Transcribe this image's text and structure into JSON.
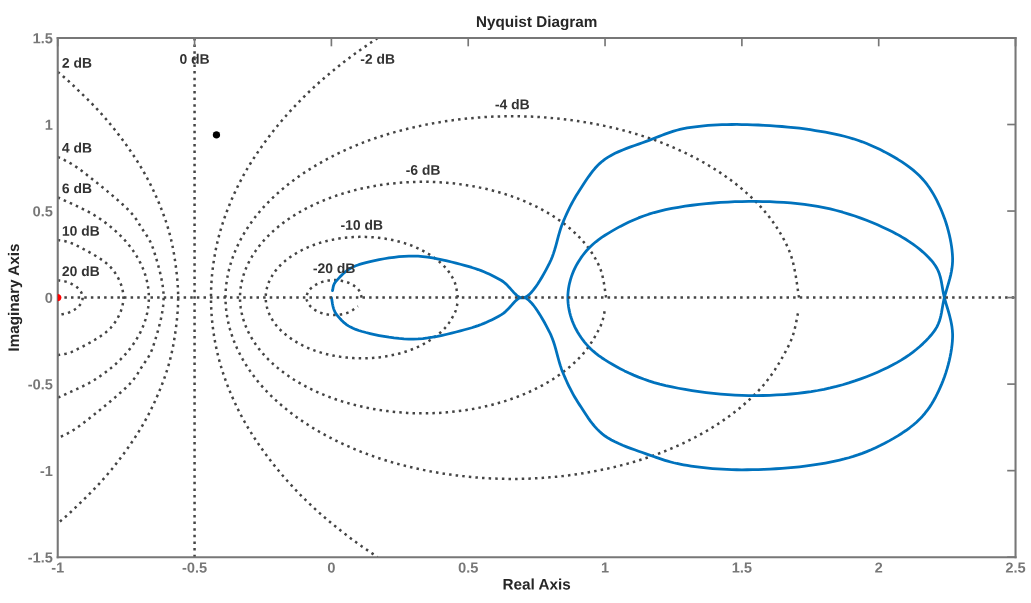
{
  "chart_data": {
    "type": "line",
    "title": "Nyquist Diagram",
    "xlabel": "Real Axis",
    "ylabel": "Imaginary Axis",
    "xlim": [
      -1,
      2.5
    ],
    "ylim": [
      -1.5,
      1.5
    ],
    "xticks": [
      -1,
      -0.5,
      0,
      0.5,
      1,
      1.5,
      2,
      2.5
    ],
    "yticks": [
      -1.5,
      -1,
      -0.5,
      0,
      0.5,
      1,
      1.5
    ],
    "grid": false,
    "legend": false,
    "ref_lines": [
      {
        "axis": "y",
        "value": 0,
        "color": "#444444",
        "line_style": "dotted"
      }
    ],
    "series": [
      {
        "type": "line",
        "name": "-4 dB",
        "line_style": "dotted",
        "color": "#444444",
        "x": [
          1.709,
          1.673,
          1.569,
          1.402,
          1.185,
          0.932,
          0.661,
          0.39,
          0.137,
          -0.08,
          -0.247,
          -0.351,
          -0.387,
          -0.351,
          -0.247,
          -0.08,
          0.137,
          0.39,
          0.661,
          0.932,
          1.185,
          1.402,
          1.569,
          1.673,
          1.705
        ],
        "values": [
          0,
          0.271,
          0.524,
          0.741,
          0.908,
          1.012,
          1.048,
          1.012,
          0.908,
          0.741,
          0.524,
          0.271,
          0,
          -0.271,
          -0.524,
          -0.741,
          -0.908,
          -1.012,
          -1.048,
          -1.012,
          -0.908,
          -0.741,
          -0.524,
          -0.271,
          -0.091
        ]
      },
      {
        "type": "line",
        "name": "-6 dB",
        "line_style": "dotted",
        "color": "#444444",
        "x": [
          1.004,
          0.981,
          0.914,
          0.808,
          0.67,
          0.508,
          0.335,
          0.162,
          0,
          -0.138,
          -0.244,
          -0.311,
          -0.334,
          -0.311,
          -0.244,
          -0.138,
          0,
          0.162,
          0.335,
          0.508,
          0.67,
          0.808,
          0.914,
          0.981,
          1.001
        ],
        "values": [
          0,
          0.173,
          0.335,
          0.473,
          0.579,
          0.646,
          0.669,
          0.646,
          0.579,
          0.473,
          0.335,
          0.173,
          0,
          -0.173,
          -0.335,
          -0.473,
          -0.579,
          -0.646,
          -0.669,
          -0.646,
          -0.579,
          -0.473,
          -0.335,
          -0.173,
          -0.058
        ]
      },
      {
        "type": "line",
        "name": "-10 dB",
        "line_style": "dotted",
        "color": "#444444",
        "x": [
          0.462,
          0.45,
          0.415,
          0.359,
          0.287,
          0.202,
          0.111,
          0.02,
          -0.065,
          -0.137,
          -0.193,
          -0.228,
          -0.24,
          -0.228,
          -0.193,
          -0.137,
          -0.065,
          0.02,
          0.111,
          0.202,
          0.287,
          0.359,
          0.415,
          0.45,
          0.461
        ],
        "values": [
          0,
          0.091,
          0.176,
          0.248,
          0.304,
          0.339,
          0.351,
          0.339,
          0.304,
          0.248,
          0.176,
          0.091,
          0,
          -0.091,
          -0.176,
          -0.248,
          -0.304,
          -0.339,
          -0.351,
          -0.339,
          -0.304,
          -0.248,
          -0.176,
          -0.091,
          -0.031
        ]
      },
      {
        "type": "line",
        "name": "-20 dB",
        "line_style": "dotted",
        "color": "#444444",
        "x": [
          0.111,
          0.097,
          0.06,
          0.01,
          -0.04,
          -0.077,
          -0.091,
          -0.077,
          -0.04,
          0.01,
          0.06,
          0.097
        ],
        "values": [
          0,
          0.05,
          0.087,
          0.101,
          0.087,
          0.05,
          0,
          -0.05,
          -0.087,
          -0.101,
          -0.087,
          -0.05
        ]
      },
      {
        "type": "line",
        "name": "20 dB",
        "line_style": "dotted",
        "color": "#444444",
        "x": [
          -1,
          -0.96,
          -0.923,
          -0.909,
          -0.923,
          -0.96,
          -1
        ],
        "values": [
          0.1,
          0.087,
          0.05,
          0,
          -0.05,
          -0.087,
          -0.1
        ]
      },
      {
        "type": "line",
        "name": "10 dB",
        "line_style": "dotted",
        "color": "#444444",
        "x": [
          -1,
          -0.935,
          -0.807,
          -0.76,
          -0.807,
          -0.935,
          -1
        ],
        "values": [
          0.333,
          0.304,
          0.176,
          0,
          -0.176,
          -0.304,
          -0.333
        ]
      },
      {
        "type": "line",
        "name": "6 dB",
        "line_style": "dotted",
        "color": "#444444",
        "x": [
          -1,
          -0.863,
          -0.757,
          -0.69,
          -0.667,
          -0.69,
          -0.757,
          -0.863,
          -1
        ],
        "values": [
          0.579,
          0.473,
          0.335,
          0.173,
          0,
          -0.173,
          -0.335,
          -0.473,
          -0.579
        ]
      },
      {
        "type": "line",
        "name": "4 dB",
        "line_style": "dotted",
        "color": "#444444",
        "x": [
          -1,
          -0.92,
          -0.753,
          -0.693,
          -0.649,
          -0.613,
          -0.649,
          -0.693,
          -0.753,
          -0.92,
          -1
        ],
        "values": [
          0.813,
          0.741,
          0.524,
          0.401,
          0.271,
          0,
          -0.271,
          -0.401,
          -0.524,
          -0.741,
          -0.813
        ]
      },
      {
        "type": "line",
        "name": "2 dB",
        "line_style": "dotted",
        "color": "#444444",
        "x": [
          -1,
          -0.949,
          -0.848,
          -0.762,
          -0.689,
          -0.633,
          -0.592,
          -0.569,
          -0.56,
          -0.569,
          -0.592,
          -0.633,
          -0.689,
          -0.762,
          -0.848,
          -0.949,
          -1
        ],
        "values": [
          1.304,
          1.234,
          1.075,
          0.909,
          0.735,
          0.557,
          0.374,
          0.187,
          0,
          -0.187,
          -0.374,
          -0.557,
          -0.735,
          -0.909,
          -1.075,
          -1.234,
          -1.304
        ]
      },
      {
        "type": "line",
        "name": "0 dB",
        "line_style": "dotted",
        "color": "#444444",
        "x": [
          -0.5,
          -0.5,
          -0.5,
          -0.5,
          -0.5,
          -0.5,
          -0.5
        ],
        "values": [
          1.5,
          1,
          0.5,
          0,
          -0.5,
          -1,
          -1.5
        ]
      },
      {
        "type": "line",
        "name": "-2 dB",
        "line_style": "dotted",
        "color": "#444444",
        "x": [
          0.169,
          0.063,
          -0.051,
          -0.152,
          -0.238,
          -0.311,
          -0.367,
          -0.408,
          -0.432,
          -0.44,
          -0.432,
          -0.408,
          -0.367,
          -0.311,
          -0.238,
          -0.152,
          -0.051,
          0.063,
          0.169
        ],
        "values": [
          1.5,
          1.382,
          1.234,
          1.075,
          0.909,
          0.735,
          0.557,
          0.373,
          0.187,
          0,
          -0.187,
          -0.373,
          -0.557,
          -0.735,
          -0.909,
          -1.075,
          -1.234,
          -1.382,
          -1.5
        ]
      },
      {
        "type": "line",
        "line_style": "solid",
        "color": "#0072bd",
        "x": [
          0,
          0.02,
          0.1,
          0.3,
          0.5,
          0.62,
          0.706,
          0.797,
          0.845,
          0.907,
          1.0,
          1.163,
          1.3,
          1.5,
          1.75,
          1.956,
          2.138,
          2.23,
          2.27,
          2.24,
          2.2,
          2.05,
          1.8,
          1.5,
          1.2,
          1.0,
          0.9,
          0.864,
          0.9,
          1.0,
          1.2,
          1.5,
          1.8,
          2.05,
          2.2,
          2.24,
          2.27,
          2.23,
          2.138,
          1.956,
          1.75,
          1.5,
          1.3,
          1.163,
          1.0,
          0.907,
          0.845,
          0.797,
          0.706,
          0.62,
          0.5,
          0.3,
          0.1,
          0.02,
          0.004
        ],
        "values": [
          0,
          -0.1,
          -0.19,
          -0.24,
          -0.18,
          -0.1,
          0,
          -0.199,
          -0.43,
          -0.62,
          -0.8,
          -0.91,
          -0.97,
          -0.995,
          -0.97,
          -0.89,
          -0.72,
          -0.5,
          -0.23,
          0,
          0.2,
          0.38,
          0.52,
          0.555,
          0.5,
          0.36,
          0.2,
          0,
          -0.2,
          -0.36,
          -0.5,
          -0.565,
          -0.53,
          -0.39,
          -0.2,
          0,
          0.23,
          0.5,
          0.72,
          0.89,
          0.97,
          1.0,
          0.98,
          0.91,
          0.8,
          0.62,
          0.43,
          0.199,
          0,
          0.1,
          0.18,
          0.24,
          0.19,
          0.1,
          0.04
        ]
      },
      {
        "type": "scatter",
        "marker": "circle",
        "color": "#ff0000",
        "x": [
          -1
        ],
        "values": [
          0
        ]
      },
      {
        "type": "scatter",
        "marker": "circle",
        "color": "#000000",
        "x": [
          -0.42
        ],
        "values": [
          0.94
        ]
      }
    ]
  }
}
